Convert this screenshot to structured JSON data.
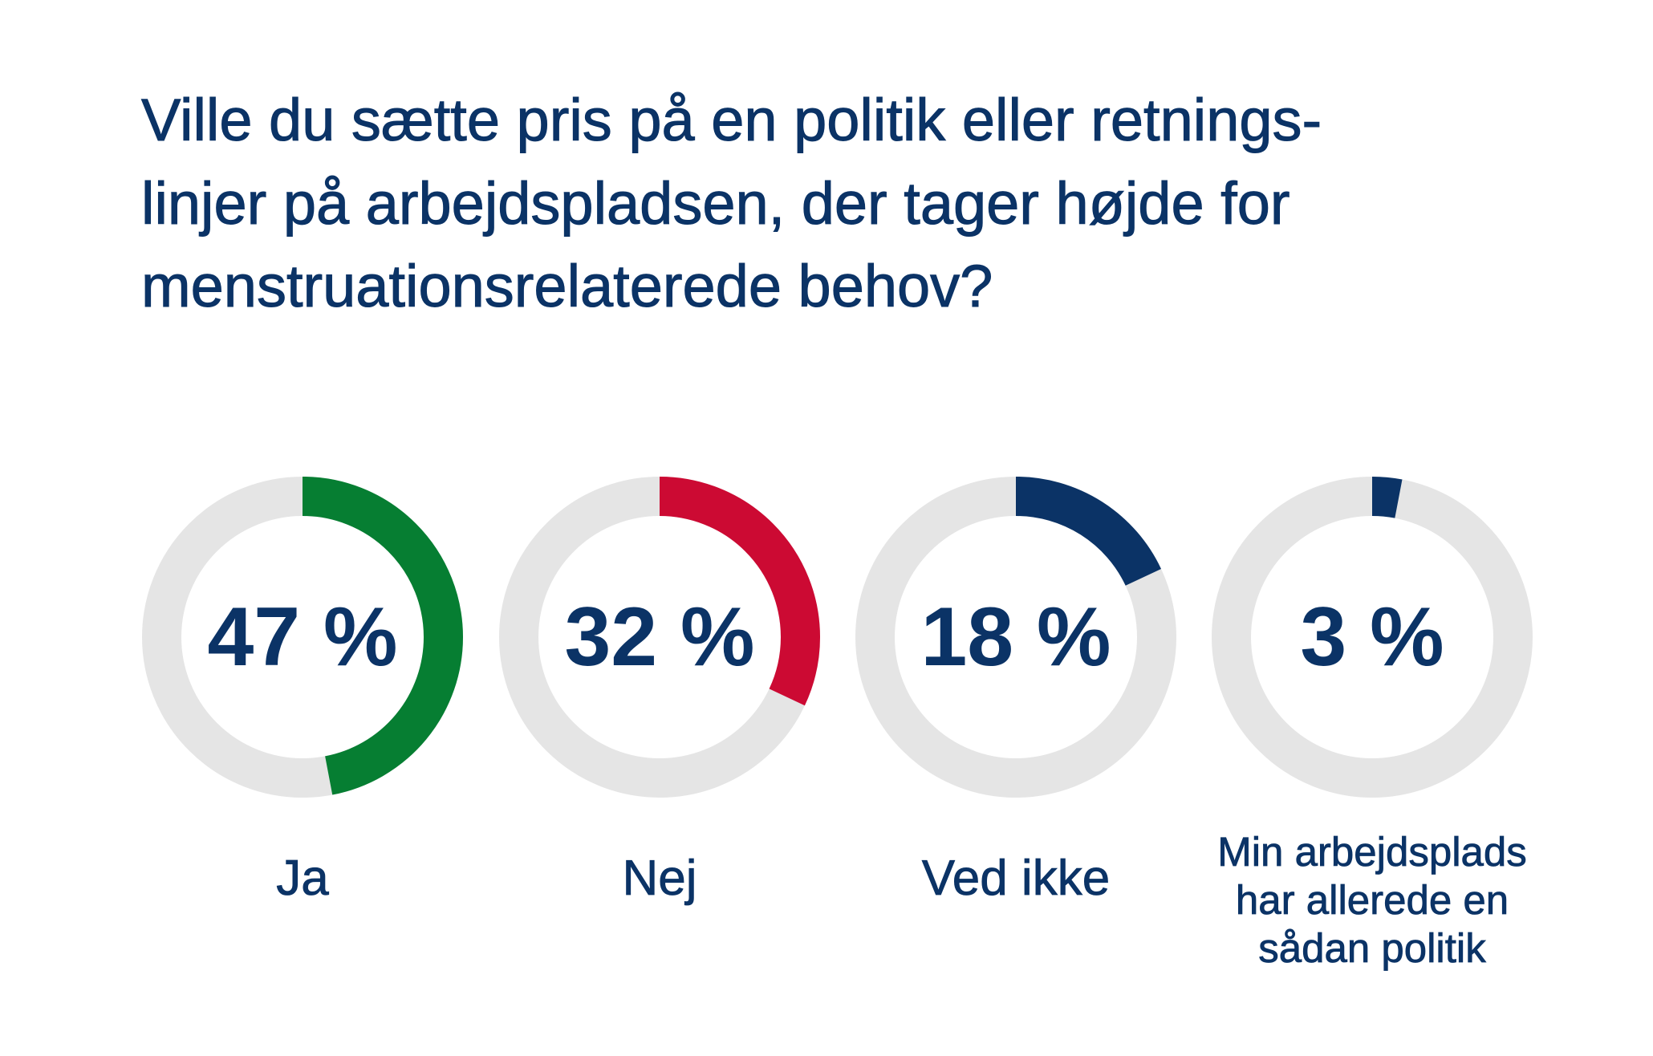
{
  "title_lines": [
    "Ville du sætte pris på en politik eller retnings-",
    "linjer på arbejdspladsen, der tager højde for",
    "menstruationsrelaterede behov?"
  ],
  "colors": {
    "text": "#0b3366",
    "track": "#e5e5e5"
  },
  "chart_data": {
    "type": "pie",
    "title": "Ville du sætte pris på en politik eller retnings- linjer på arbejdspladsen, der tager højde for menstruationsrelaterede behov?",
    "unit": "%",
    "categories": [
      "Ja",
      "Nej",
      "Ved ikke",
      "Min arbejdsplads har allerede en sådan politik"
    ],
    "values": [
      47,
      32,
      18,
      3
    ],
    "value_labels": [
      "47 %",
      "32 %",
      "18 %",
      "3 %"
    ],
    "label_lines": [
      [
        "Ja"
      ],
      [
        "Nej"
      ],
      [
        "Ved ikke"
      ],
      [
        "Min arbejdsplads",
        "har allerede en",
        "sådan politik"
      ]
    ],
    "colors": [
      "#067e32",
      "#cc0a33",
      "#0b3366",
      "#0b3366"
    ]
  }
}
